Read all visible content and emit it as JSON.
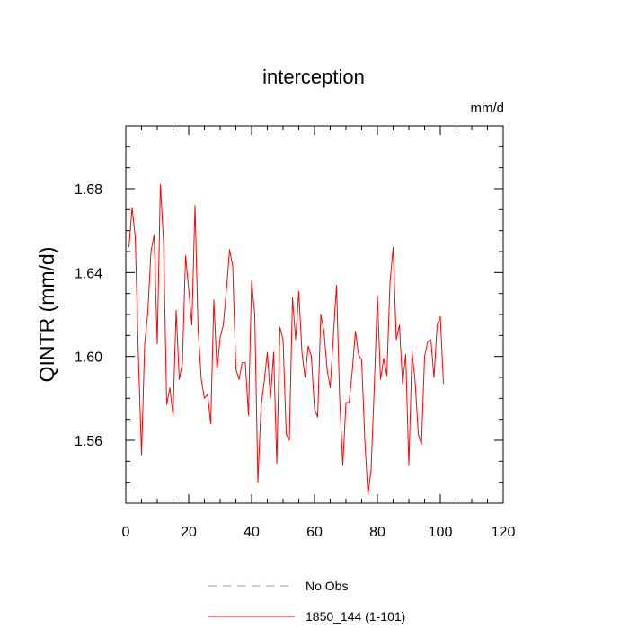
{
  "chart_data": {
    "type": "line",
    "title": "interception",
    "units_label": "mm/d",
    "ylabel": "QINTR  (mm/d)",
    "xlabel": "",
    "xlim": [
      0,
      120
    ],
    "ylim": [
      1.53,
      1.71
    ],
    "x_ticks": [
      0,
      20,
      40,
      60,
      80,
      100,
      120
    ],
    "y_ticks": [
      1.56,
      1.6,
      1.64,
      1.68
    ],
    "x_tick_labels": [
      "0",
      "20",
      "40",
      "60",
      "80",
      "100",
      "120"
    ],
    "y_tick_labels": [
      "1.56",
      "1.60",
      "1.64",
      "1.68"
    ],
    "grid": false,
    "legend_position": "bottom",
    "legend": [
      {
        "name": "No Obs",
        "color": "#8f8fff",
        "style": "dashed"
      },
      {
        "name": "1850_144 (1-101)",
        "color": "#ff0000",
        "style": "solid"
      }
    ],
    "series": [
      {
        "name": "1850_144 (1-101)",
        "color": "#ff0000",
        "x_start": 1,
        "values": [
          1.652,
          1.671,
          1.657,
          1.6,
          1.553,
          1.606,
          1.621,
          1.65,
          1.658,
          1.606,
          1.682,
          1.655,
          1.577,
          1.585,
          1.572,
          1.622,
          1.589,
          1.597,
          1.648,
          1.632,
          1.615,
          1.672,
          1.613,
          1.589,
          1.58,
          1.582,
          1.568,
          1.627,
          1.593,
          1.609,
          1.615,
          1.632,
          1.651,
          1.643,
          1.594,
          1.589,
          1.597,
          1.597,
          1.572,
          1.636,
          1.62,
          1.54,
          1.576,
          1.588,
          1.602,
          1.58,
          1.602,
          1.549,
          1.614,
          1.608,
          1.563,
          1.56,
          1.628,
          1.608,
          1.631,
          1.602,
          1.59,
          1.605,
          1.6,
          1.575,
          1.571,
          1.62,
          1.612,
          1.594,
          1.585,
          1.61,
          1.634,
          1.58,
          1.548,
          1.578,
          1.578,
          1.593,
          1.612,
          1.601,
          1.598,
          1.56,
          1.534,
          1.546,
          1.585,
          1.629,
          1.589,
          1.599,
          1.591,
          1.635,
          1.652,
          1.608,
          1.615,
          1.587,
          1.601,
          1.548,
          1.602,
          1.588,
          1.563,
          1.558,
          1.6,
          1.607,
          1.608,
          1.59,
          1.615,
          1.619,
          1.587
        ]
      }
    ]
  }
}
